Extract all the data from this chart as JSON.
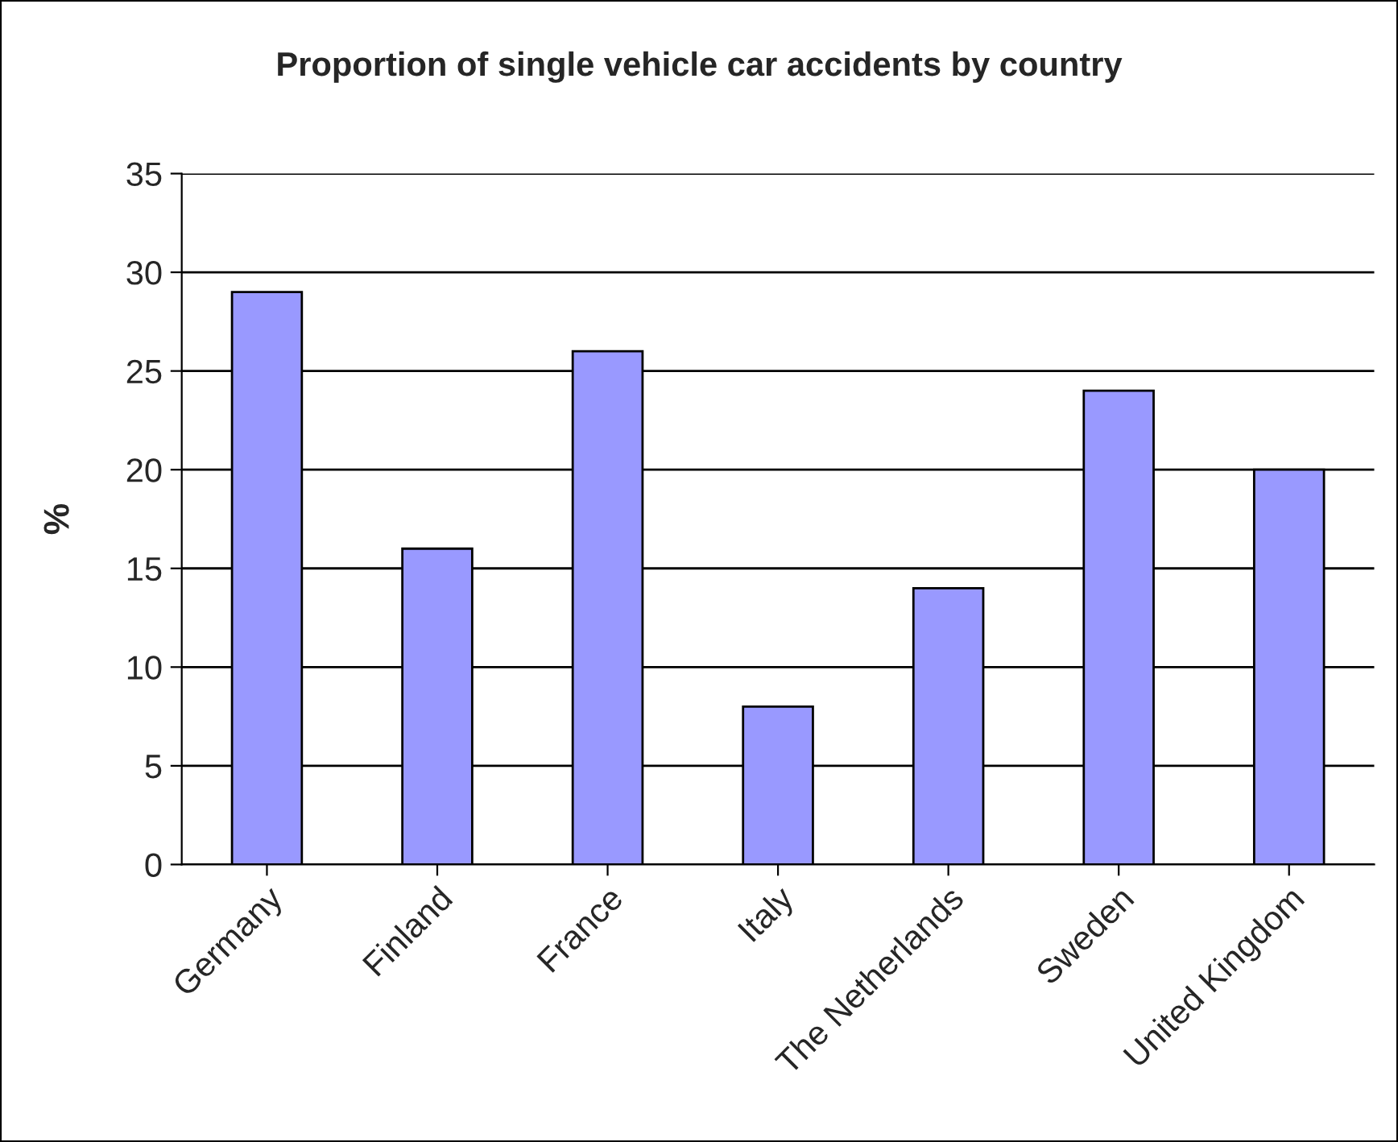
{
  "chart_data": {
    "type": "bar",
    "title": "Proportion of single vehicle car accidents by country",
    "ylabel": "%",
    "categories": [
      "Germany",
      "Finland",
      "France",
      "Italy",
      "The Netherlands",
      "Sweden",
      "United Kingdom"
    ],
    "values": [
      29,
      16,
      26,
      8,
      14,
      24,
      20
    ],
    "color": "#9999ff",
    "ylim": [
      0,
      35
    ],
    "yticks": [
      0,
      5,
      10,
      15,
      20,
      25,
      30,
      35
    ],
    "grid": "y",
    "legend": false
  }
}
